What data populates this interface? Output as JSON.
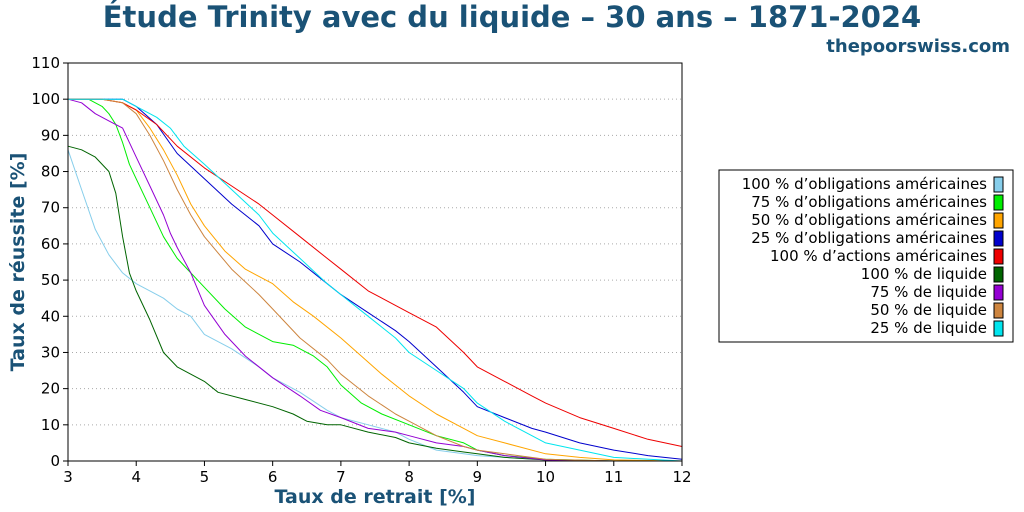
{
  "chart_data": {
    "type": "line",
    "title": "Étude Trinity avec du liquide – 30 ans – 1871-2024",
    "source": "thepoorswiss.com",
    "xlabel": "Taux de retrait [%]",
    "ylabel": "Taux de réussite [%]",
    "xlim": [
      3,
      12
    ],
    "ylim": [
      0,
      110
    ],
    "x_ticks": [
      "3",
      "4",
      "5",
      "6",
      "7",
      "8",
      "9",
      "10",
      "11",
      "12"
    ],
    "y_ticks": [
      "0",
      "10",
      "20",
      "30",
      "40",
      "50",
      "60",
      "70",
      "80",
      "90",
      "100",
      "110"
    ],
    "grid": "horizontal dotted",
    "legend_position": "right",
    "series": [
      {
        "name": "100 % d’obligations américaines",
        "color": "#87ceeb",
        "x": [
          3.0,
          3.2,
          3.4,
          3.6,
          3.8,
          4.0,
          4.2,
          4.4,
          4.6,
          4.8,
          5.0,
          5.4,
          5.8,
          6.0,
          6.4,
          6.8,
          7.0,
          7.4,
          7.8,
          8.0,
          8.4,
          8.8,
          9.0,
          9.4,
          10.0,
          11.0,
          12.0
        ],
        "y": [
          86,
          75,
          64,
          57,
          52,
          49,
          47,
          45,
          42,
          40,
          35,
          31,
          26,
          23,
          19,
          14,
          12,
          10,
          8,
          6,
          3,
          2,
          1.5,
          1,
          0.3,
          0,
          0
        ]
      },
      {
        "name": "75 % d’obligations américaines",
        "color": "#00ee00",
        "x": [
          3.0,
          3.3,
          3.5,
          3.6,
          3.7,
          3.8,
          3.9,
          4.0,
          4.2,
          4.4,
          4.6,
          4.8,
          5.0,
          5.3,
          5.6,
          6.0,
          6.3,
          6.6,
          6.8,
          7.0,
          7.3,
          7.6,
          8.0,
          8.4,
          8.8,
          9.0,
          9.4,
          10.0,
          11.0,
          12.0
        ],
        "y": [
          100,
          100,
          98,
          96,
          93,
          88,
          82,
          78,
          70,
          62,
          56,
          52,
          48,
          42,
          37,
          33,
          32,
          29,
          26,
          21,
          16,
          13,
          10,
          7,
          5,
          3,
          1.5,
          0.5,
          0,
          0
        ]
      },
      {
        "name": "50 % d’obligations américaines",
        "color": "#ffa500",
        "x": [
          3.0,
          3.5,
          3.8,
          4.0,
          4.2,
          4.4,
          4.6,
          4.8,
          5.0,
          5.3,
          5.6,
          6.0,
          6.3,
          6.6,
          7.0,
          7.3,
          7.6,
          8.0,
          8.4,
          8.8,
          9.0,
          9.4,
          10.0,
          10.5,
          11.0,
          12.0
        ],
        "y": [
          100,
          100,
          99,
          97,
          92,
          86,
          79,
          71,
          65,
          58,
          53,
          49,
          44,
          40,
          34,
          29,
          24,
          18,
          13,
          9,
          7,
          5,
          2,
          1,
          0.3,
          0
        ]
      },
      {
        "name": "25 % d’obligations américaines",
        "color": "#0000cc",
        "x": [
          3.0,
          3.5,
          3.8,
          4.0,
          4.3,
          4.6,
          5.0,
          5.4,
          5.8,
          6.0,
          6.4,
          6.8,
          7.0,
          7.4,
          7.8,
          8.0,
          8.4,
          8.8,
          9.0,
          9.4,
          9.8,
          10.0,
          10.5,
          11.0,
          11.5,
          12.0
        ],
        "y": [
          100,
          100,
          100,
          98,
          93,
          85,
          78,
          71,
          65,
          60,
          55,
          49,
          46,
          41,
          36,
          33,
          26,
          19,
          15,
          12,
          9,
          8,
          5,
          3,
          1.5,
          0.5
        ]
      },
      {
        "name": "100 % d’actions américaines",
        "color": "#ee0000",
        "x": [
          3.0,
          3.5,
          3.8,
          4.0,
          4.3,
          4.6,
          5.0,
          5.4,
          5.8,
          6.0,
          6.4,
          6.8,
          7.0,
          7.4,
          7.8,
          8.0,
          8.4,
          8.8,
          9.0,
          9.4,
          9.8,
          10.0,
          10.5,
          11.0,
          11.5,
          12.0
        ],
        "y": [
          100,
          100,
          99,
          97,
          93,
          87,
          81,
          76,
          71,
          68,
          62,
          56,
          53,
          47,
          43,
          41,
          37,
          30,
          26,
          22,
          18,
          16,
          12,
          9,
          6,
          4
        ]
      },
      {
        "name": "100 % de liquide",
        "color": "#006400",
        "x": [
          3.0,
          3.2,
          3.4,
          3.6,
          3.7,
          3.8,
          3.9,
          4.0,
          4.2,
          4.4,
          4.6,
          4.8,
          5.0,
          5.2,
          5.6,
          6.0,
          6.3,
          6.5,
          6.8,
          7.0,
          7.4,
          7.8,
          8.0,
          8.4,
          8.8,
          9.0,
          9.4,
          10.0,
          11.0,
          12.0
        ],
        "y": [
          87,
          86,
          84,
          80,
          74,
          62,
          52,
          47,
          39,
          30,
          26,
          24,
          22,
          19,
          17,
          15,
          13,
          11,
          10,
          10,
          8,
          6.5,
          5,
          3.5,
          2.5,
          2,
          1,
          0.3,
          0,
          0
        ]
      },
      {
        "name": "75 % de liquide",
        "color": "#9400d3",
        "x": [
          3.0,
          3.2,
          3.4,
          3.6,
          3.8,
          3.9,
          4.0,
          4.2,
          4.4,
          4.5,
          4.6,
          4.8,
          5.0,
          5.3,
          5.6,
          6.0,
          6.4,
          6.7,
          7.0,
          7.4,
          7.8,
          8.0,
          8.4,
          8.8,
          9.0,
          9.4,
          10.0,
          11.0,
          12.0
        ],
        "y": [
          100,
          99,
          96,
          94,
          92,
          88,
          84,
          76,
          68,
          63,
          59,
          52,
          43,
          35,
          29,
          23,
          18,
          14,
          12,
          9,
          8,
          7,
          5,
          4,
          3,
          1.5,
          0.3,
          0,
          0
        ]
      },
      {
        "name": "50 % de liquide",
        "color": "#cd853f",
        "x": [
          3.0,
          3.5,
          3.8,
          4.0,
          4.2,
          4.4,
          4.6,
          4.8,
          5.0,
          5.4,
          5.8,
          6.0,
          6.4,
          6.8,
          7.0,
          7.4,
          7.8,
          8.0,
          8.4,
          8.8,
          9.0,
          9.4,
          10.0,
          11.0,
          12.0
        ],
        "y": [
          100,
          100,
          99,
          96,
          90,
          83,
          75,
          68,
          62,
          53,
          46,
          42,
          34,
          28,
          24,
          18,
          13,
          11,
          7,
          4,
          3,
          2,
          0.5,
          0,
          0
        ]
      },
      {
        "name": "25 % de liquide",
        "color": "#00e5ee",
        "x": [
          3.0,
          3.5,
          3.8,
          4.0,
          4.3,
          4.5,
          4.7,
          5.0,
          5.4,
          5.8,
          6.0,
          6.4,
          6.8,
          7.0,
          7.4,
          7.8,
          8.0,
          8.4,
          8.8,
          9.0,
          9.4,
          9.8,
          10.0,
          10.5,
          11.0,
          12.0
        ],
        "y": [
          100,
          100,
          100,
          98,
          95,
          92,
          87,
          82,
          75,
          68,
          63,
          56,
          49,
          46,
          40,
          34,
          30,
          25,
          20,
          16,
          11,
          7,
          5,
          3,
          1,
          0
        ]
      }
    ]
  }
}
